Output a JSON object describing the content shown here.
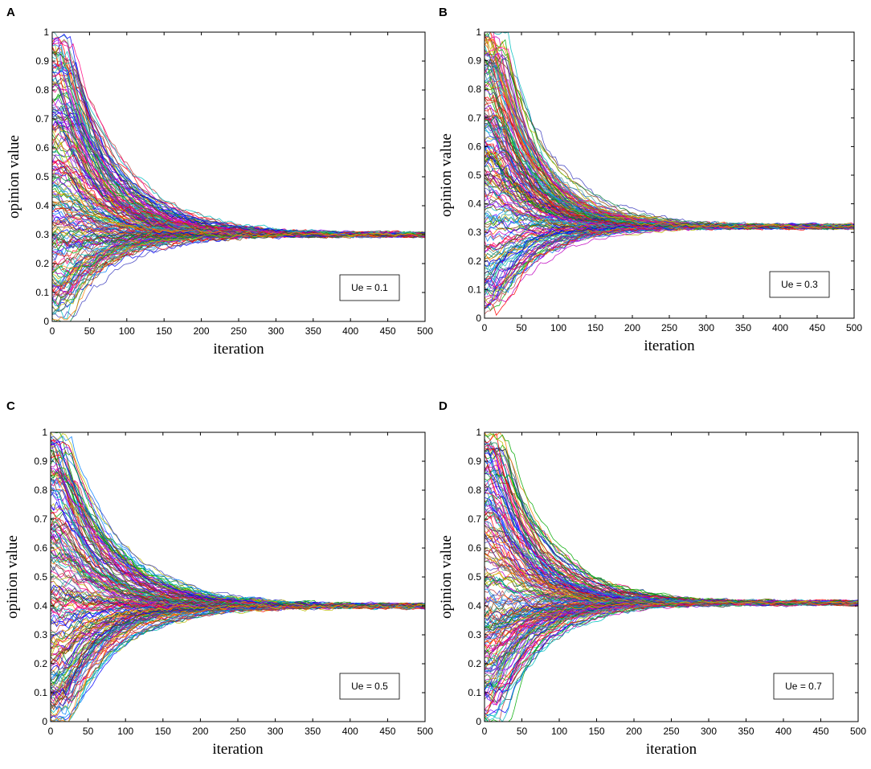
{
  "chart_data": [
    {
      "panel": "A",
      "type": "line",
      "xlabel": "iteration",
      "ylabel": "opinion value",
      "xlim": [
        0,
        500
      ],
      "ylim": [
        0,
        1
      ],
      "xticks": [
        "0",
        "50",
        "100",
        "150",
        "200",
        "250",
        "300",
        "350",
        "400",
        "450",
        "500"
      ],
      "yticks": [
        "0",
        "0.1",
        "0.2",
        "0.3",
        "0.4",
        "0.5",
        "0.6",
        "0.7",
        "0.8",
        "0.9",
        "1"
      ],
      "legend": "Ue = 0.1",
      "legend_position": "bottom-right",
      "grid": false,
      "series_count": 200,
      "initial_range": [
        0,
        1
      ],
      "convergence_value": 0.3,
      "convergence_iteration": 200,
      "x": [
        0,
        50,
        100,
        150,
        200,
        250,
        300,
        350,
        400,
        450,
        500
      ],
      "envelope_upper": [
        1.0,
        0.8,
        0.45,
        0.34,
        0.32,
        0.31,
        0.31,
        0.31,
        0.31,
        0.31,
        0.31
      ],
      "envelope_lower": [
        0.0,
        0.14,
        0.21,
        0.25,
        0.27,
        0.28,
        0.29,
        0.29,
        0.29,
        0.29,
        0.29
      ]
    },
    {
      "panel": "B",
      "type": "line",
      "xlabel": "iteration",
      "ylabel": "opinion value",
      "xlim": [
        0,
        500
      ],
      "ylim": [
        0,
        1
      ],
      "xticks": [
        "0",
        "50",
        "100",
        "150",
        "200",
        "250",
        "300",
        "350",
        "400",
        "450",
        "500"
      ],
      "yticks": [
        "0",
        "0.1",
        "0.2",
        "0.3",
        "0.4",
        "0.5",
        "0.6",
        "0.7",
        "0.8",
        "0.9",
        "1"
      ],
      "legend": "Ue = 0.3",
      "legend_position": "bottom-right",
      "grid": false,
      "series_count": 200,
      "initial_range": [
        0,
        1
      ],
      "convergence_value": 0.32,
      "convergence_iteration": 175,
      "x": [
        0,
        50,
        100,
        150,
        200,
        250,
        300,
        350,
        400,
        450,
        500
      ],
      "envelope_upper": [
        1.0,
        0.72,
        0.42,
        0.35,
        0.34,
        0.34,
        0.34,
        0.34,
        0.34,
        0.34,
        0.34
      ],
      "envelope_lower": [
        0.0,
        0.13,
        0.23,
        0.28,
        0.3,
        0.3,
        0.31,
        0.31,
        0.31,
        0.31,
        0.31
      ]
    },
    {
      "panel": "C",
      "type": "line",
      "xlabel": "iteration",
      "ylabel": "opinion value",
      "xlim": [
        0,
        500
      ],
      "ylim": [
        0,
        1
      ],
      "xticks": [
        "0",
        "50",
        "100",
        "150",
        "200",
        "250",
        "300",
        "350",
        "400",
        "450",
        "500"
      ],
      "yticks": [
        "0",
        "0.1",
        "0.2",
        "0.3",
        "0.4",
        "0.5",
        "0.6",
        "0.7",
        "0.8",
        "0.9",
        "1"
      ],
      "legend": "Ue = 0.5",
      "legend_position": "bottom-right",
      "grid": false,
      "series_count": 200,
      "initial_range": [
        0,
        1
      ],
      "convergence_value": 0.4,
      "convergence_iteration": 200,
      "x": [
        0,
        50,
        100,
        150,
        200,
        250,
        300,
        350,
        400,
        450,
        500
      ],
      "envelope_upper": [
        1.0,
        0.8,
        0.55,
        0.45,
        0.42,
        0.42,
        0.42,
        0.42,
        0.42,
        0.42,
        0.42
      ],
      "envelope_lower": [
        0.0,
        0.13,
        0.28,
        0.35,
        0.37,
        0.38,
        0.38,
        0.38,
        0.38,
        0.38,
        0.38
      ]
    },
    {
      "panel": "D",
      "type": "line",
      "xlabel": "iteration",
      "ylabel": "opinion value",
      "xlim": [
        0,
        500
      ],
      "ylim": [
        0,
        1
      ],
      "xticks": [
        "0",
        "50",
        "100",
        "150",
        "200",
        "250",
        "300",
        "350",
        "400",
        "450",
        "500"
      ],
      "yticks": [
        "0",
        "0.1",
        "0.2",
        "0.3",
        "0.4",
        "0.5",
        "0.6",
        "0.7",
        "0.8",
        "0.9",
        "1"
      ],
      "legend": "Ue = 0.7",
      "legend_position": "bottom-right",
      "grid": false,
      "series_count": 200,
      "initial_range": [
        0,
        1
      ],
      "convergence_value": 0.41,
      "convergence_iteration": 180,
      "x": [
        0,
        50,
        100,
        150,
        200,
        250,
        300,
        350,
        400,
        450,
        500
      ],
      "envelope_upper": [
        1.0,
        0.8,
        0.5,
        0.44,
        0.43,
        0.43,
        0.43,
        0.43,
        0.43,
        0.43,
        0.43
      ],
      "envelope_lower": [
        0.0,
        0.14,
        0.3,
        0.37,
        0.39,
        0.4,
        0.4,
        0.4,
        0.4,
        0.4,
        0.4
      ]
    }
  ],
  "colors": [
    "#0000ff",
    "#ff0000",
    "#00aa00",
    "#00bfbf",
    "#bf00bf",
    "#bfbf00",
    "#404040",
    "#ff8000",
    "#8000ff",
    "#0080ff",
    "#ff0080",
    "#008040",
    "#804000",
    "#4040c0",
    "#c04040",
    "#40a0a0"
  ]
}
